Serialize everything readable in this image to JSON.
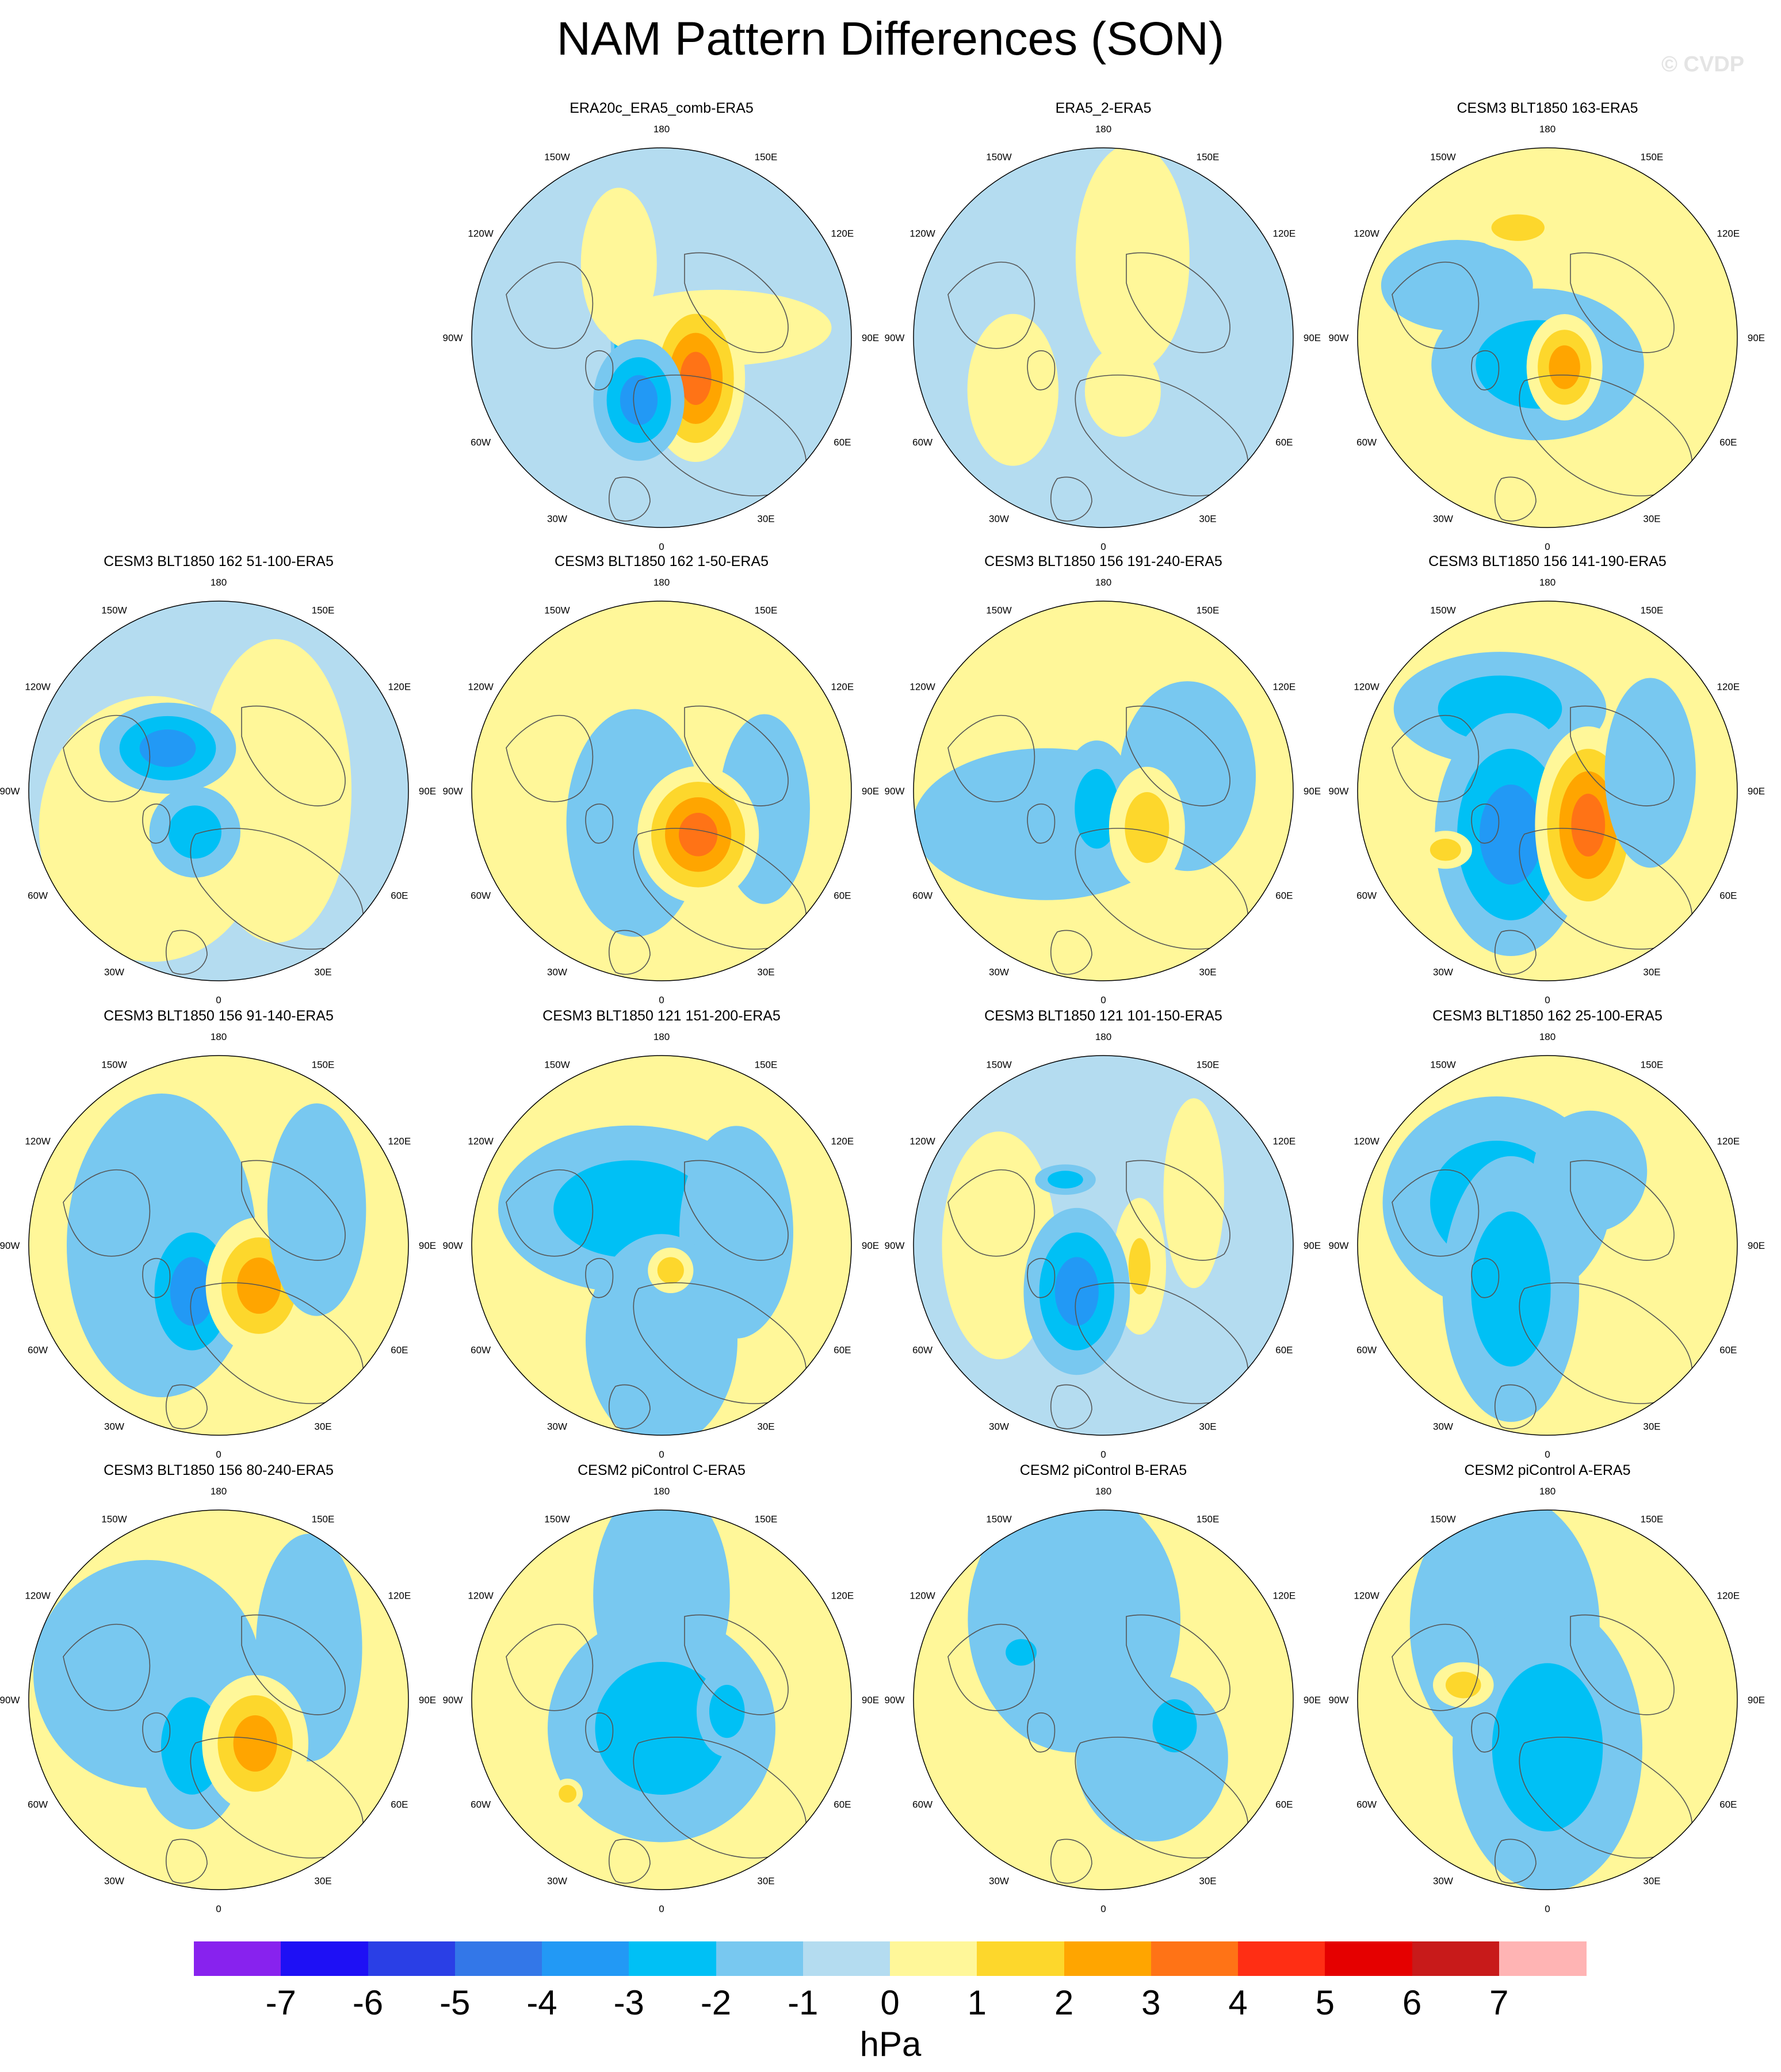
{
  "title": "NAM Pattern Differences (SON)",
  "watermark": "© CVDP",
  "lon_labels": [
    "180",
    "150E",
    "120E",
    "90E",
    "60E",
    "30E",
    "0",
    "30W",
    "60W",
    "90W",
    "120W",
    "150W"
  ],
  "panels": [
    {
      "title": "ERA20c_ERA5_comb-ERA5",
      "base": "#b4dcf0",
      "blobs": [
        {
          "lon": 250,
          "r": 0.18,
          "a": 0.05,
          "b": 0.28,
          "levels": [
            -1,
            -2,
            -3,
            -4,
            -5
          ]
        },
        {
          "lon": 100,
          "r": 0.3,
          "a": 0.3,
          "b": 0.1,
          "levels": [
            1,
            1,
            1
          ]
        },
        {
          "lon": 210,
          "r": 0.45,
          "a": 0.1,
          "b": 0.2,
          "levels": [
            1
          ]
        },
        {
          "lon": 40,
          "r": 0.28,
          "a": 0.13,
          "b": 0.22,
          "levels": [
            1,
            2,
            3,
            4
          ]
        },
        {
          "lon": 340,
          "r": 0.35,
          "a": 0.12,
          "b": 0.16,
          "levels": [
            -1,
            -2,
            -3
          ]
        }
      ]
    },
    {
      "title": "ERA5_2-ERA5",
      "base": "#b4dcf0",
      "blobs": [
        {
          "lon": 160,
          "r": 0.45,
          "a": 0.15,
          "b": 0.3,
          "levels": [
            1
          ]
        },
        {
          "lon": 300,
          "r": 0.55,
          "a": 0.12,
          "b": 0.2,
          "levels": [
            1
          ]
        },
        {
          "lon": 20,
          "r": 0.3,
          "a": 0.1,
          "b": 0.12,
          "levels": [
            1
          ]
        }
      ]
    },
    {
      "title": "CESM3 BLT1850 163-ERA5",
      "base": "#fff799",
      "blobs": [
        {
          "lon": 340,
          "r": 0.15,
          "a": 0.28,
          "b": 0.2,
          "levels": [
            -1,
            -2
          ]
        },
        {
          "lon": 240,
          "r": 0.55,
          "a": 0.2,
          "b": 0.12,
          "levels": [
            -1
          ]
        },
        {
          "lon": 30,
          "r": 0.18,
          "a": 0.1,
          "b": 0.14,
          "levels": [
            1,
            2,
            3
          ]
        },
        {
          "lon": 195,
          "r": 0.6,
          "a": 0.12,
          "b": 0.06,
          "levels": [
            1,
            2
          ]
        }
      ]
    },
    {
      "title": "CESM3 BLT1850 162 51-100-ERA5",
      "base": "#b4dcf0",
      "blobs": [
        {
          "lon": 300,
          "r": 0.4,
          "a": 0.3,
          "b": 0.35,
          "levels": [
            1
          ]
        },
        {
          "lon": 90,
          "r": 0.3,
          "a": 0.2,
          "b": 0.4,
          "levels": [
            1
          ]
        },
        {
          "lon": 230,
          "r": 0.35,
          "a": 0.18,
          "b": 0.12,
          "levels": [
            -1,
            -2,
            -3
          ]
        },
        {
          "lon": 330,
          "r": 0.25,
          "a": 0.12,
          "b": 0.12,
          "levels": [
            -1,
            -2
          ]
        }
      ]
    },
    {
      "title": "CESM3 BLT1850 162 1-50-ERA5",
      "base": "#fff799",
      "blobs": [
        {
          "lon": 320,
          "r": 0.22,
          "a": 0.18,
          "b": 0.3,
          "levels": [
            -1
          ]
        },
        {
          "lon": 80,
          "r": 0.55,
          "a": 0.12,
          "b": 0.25,
          "levels": [
            -1
          ]
        },
        {
          "lon": 40,
          "r": 0.3,
          "a": 0.16,
          "b": 0.18,
          "levels": [
            1,
            2,
            3,
            4
          ]
        }
      ]
    },
    {
      "title": "CESM3 BLT1850 156 191-240-ERA5",
      "base": "#fff799",
      "blobs": [
        {
          "lon": 300,
          "r": 0.35,
          "a": 0.35,
          "b": 0.2,
          "levels": [
            -1
          ]
        },
        {
          "lon": 100,
          "r": 0.45,
          "a": 0.18,
          "b": 0.25,
          "levels": [
            -1
          ]
        },
        {
          "lon": 340,
          "r": 0.1,
          "a": 0.1,
          "b": 0.18,
          "levels": [
            -1,
            -2
          ]
        },
        {
          "lon": 50,
          "r": 0.3,
          "a": 0.1,
          "b": 0.16,
          "levels": [
            1,
            2
          ]
        }
      ]
    },
    {
      "title": "CESM3 BLT1850 156 141-190-ERA5",
      "base": "#fff799",
      "blobs": [
        {
          "lon": 210,
          "r": 0.5,
          "a": 0.28,
          "b": 0.15,
          "levels": [
            -1,
            -2
          ]
        },
        {
          "lon": 320,
          "r": 0.3,
          "a": 0.2,
          "b": 0.32,
          "levels": [
            -1,
            -2,
            -3
          ]
        },
        {
          "lon": 50,
          "r": 0.28,
          "a": 0.14,
          "b": 0.26,
          "levels": [
            1,
            2,
            3,
            4
          ]
        },
        {
          "lon": 100,
          "r": 0.55,
          "a": 0.12,
          "b": 0.25,
          "levels": [
            -1
          ]
        },
        {
          "lon": 300,
          "r": 0.62,
          "a": 0.07,
          "b": 0.05,
          "levels": [
            1,
            2
          ]
        }
      ]
    },
    {
      "title": "CESM3 BLT1850 156 91-140-ERA5",
      "base": "#fff799",
      "blobs": [
        {
          "lon": 270,
          "r": 0.3,
          "a": 0.25,
          "b": 0.4,
          "levels": [
            -1
          ]
        },
        {
          "lon": 330,
          "r": 0.28,
          "a": 0.14,
          "b": 0.22,
          "levels": [
            -1,
            -2,
            -3
          ]
        },
        {
          "lon": 45,
          "r": 0.3,
          "a": 0.14,
          "b": 0.18,
          "levels": [
            1,
            2,
            3
          ]
        },
        {
          "lon": 110,
          "r": 0.55,
          "a": 0.13,
          "b": 0.28,
          "levels": [
            -1
          ]
        }
      ]
    },
    {
      "title": "CESM3 BLT1850 121 151-200-ERA5",
      "base": "#fff799",
      "blobs": [
        {
          "lon": 220,
          "r": 0.25,
          "a": 0.35,
          "b": 0.22,
          "levels": [
            -1,
            -2
          ]
        },
        {
          "lon": 100,
          "r": 0.4,
          "a": 0.15,
          "b": 0.28,
          "levels": [
            -1
          ]
        },
        {
          "lon": 0,
          "r": 0.5,
          "a": 0.2,
          "b": 0.28,
          "levels": [
            -1
          ]
        },
        {
          "lon": 20,
          "r": 0.14,
          "a": 0.06,
          "b": 0.06,
          "levels": [
            1,
            2
          ]
        }
      ]
    },
    {
      "title": "CESM3 BLT1850 121 101-150-ERA5",
      "base": "#b4dcf0",
      "blobs": [
        {
          "lon": 270,
          "r": 0.55,
          "a": 0.15,
          "b": 0.3,
          "levels": [
            1
          ]
        },
        {
          "lon": 60,
          "r": 0.22,
          "a": 0.07,
          "b": 0.18,
          "levels": [
            1,
            1,
            2
          ]
        },
        {
          "lon": 330,
          "r": 0.28,
          "a": 0.14,
          "b": 0.22,
          "levels": [
            -1,
            -2,
            -3
          ]
        },
        {
          "lon": 120,
          "r": 0.55,
          "a": 0.08,
          "b": 0.25,
          "levels": [
            1
          ]
        },
        {
          "lon": 210,
          "r": 0.4,
          "a": 0.08,
          "b": 0.04,
          "levels": [
            -1,
            -2
          ]
        }
      ]
    },
    {
      "title": "CESM3 BLT1850 162 25-100-ERA5",
      "base": "#fff799",
      "blobs": [
        {
          "lon": 230,
          "r": 0.35,
          "a": 0.3,
          "b": 0.28,
          "levels": [
            -1,
            -2
          ]
        },
        {
          "lon": 320,
          "r": 0.3,
          "a": 0.18,
          "b": 0.35,
          "levels": [
            -1,
            -2
          ]
        },
        {
          "lon": 150,
          "r": 0.45,
          "a": 0.15,
          "b": 0.16,
          "levels": [
            -1
          ]
        }
      ]
    },
    {
      "title": "CESM3 BLT1850 156 80-240-ERA5",
      "base": "#fff799",
      "blobs": [
        {
          "lon": 250,
          "r": 0.4,
          "a": 0.3,
          "b": 0.3,
          "levels": [
            -1
          ]
        },
        {
          "lon": 120,
          "r": 0.55,
          "a": 0.14,
          "b": 0.3,
          "levels": [
            -1
          ]
        },
        {
          "lon": 330,
          "r": 0.28,
          "a": 0.14,
          "b": 0.22,
          "levels": [
            -1,
            -2
          ]
        },
        {
          "lon": 40,
          "r": 0.3,
          "a": 0.14,
          "b": 0.18,
          "levels": [
            1,
            2,
            3
          ]
        }
      ]
    },
    {
      "title": "CESM2 piControl C-ERA5",
      "base": "#fff799",
      "blobs": [
        {
          "lon": 180,
          "r": 0.55,
          "a": 0.18,
          "b": 0.3,
          "levels": [
            -1
          ]
        },
        {
          "lon": 0,
          "r": 0.15,
          "a": 0.3,
          "b": 0.3,
          "levels": [
            -1,
            -2
          ]
        },
        {
          "lon": 80,
          "r": 0.35,
          "a": 0.08,
          "b": 0.12,
          "levels": [
            -1,
            -2
          ]
        },
        {
          "lon": 315,
          "r": 0.7,
          "a": 0.04,
          "b": 0.04,
          "levels": [
            1,
            2
          ]
        }
      ]
    },
    {
      "title": "CESM2 piControl B-ERA5",
      "base": "#fff799",
      "blobs": [
        {
          "lon": 200,
          "r": 0.45,
          "a": 0.28,
          "b": 0.35,
          "levels": [
            -1
          ]
        },
        {
          "lon": 40,
          "r": 0.4,
          "a": 0.2,
          "b": 0.22,
          "levels": [
            -1
          ]
        },
        {
          "lon": 70,
          "r": 0.4,
          "a": 0.1,
          "b": 0.12,
          "levels": [
            -1,
            -2
          ]
        },
        {
          "lon": 240,
          "r": 0.5,
          "a": 0.07,
          "b": 0.06,
          "levels": [
            -1,
            -2
          ]
        }
      ]
    },
    {
      "title": "CESM2 piControl A-ERA5",
      "base": "#fff799",
      "blobs": [
        {
          "lon": 210,
          "r": 0.45,
          "a": 0.25,
          "b": 0.35,
          "levels": [
            -1
          ]
        },
        {
          "lon": 0,
          "r": 0.25,
          "a": 0.25,
          "b": 0.38,
          "levels": [
            -1,
            -2
          ]
        },
        {
          "lon": 260,
          "r": 0.45,
          "a": 0.08,
          "b": 0.06,
          "levels": [
            1,
            2
          ]
        }
      ]
    }
  ],
  "colorbar": {
    "colors": [
      "#8822ee",
      "#1e10f5",
      "#2a3fe6",
      "#3377e8",
      "#2299f5",
      "#00c0f5",
      "#78c8f0",
      "#b4dcf0",
      "#fff799",
      "#fdd72c",
      "#ffa500",
      "#ff7316",
      "#ff2e14",
      "#e50000",
      "#c81a1a",
      "#ffb4b4"
    ],
    "ticks": [
      "-7",
      "-6",
      "-5",
      "-4",
      "-3",
      "-2",
      "-1",
      "0",
      "1",
      "2",
      "3",
      "4",
      "5",
      "6",
      "7"
    ],
    "unit": "hPa"
  }
}
